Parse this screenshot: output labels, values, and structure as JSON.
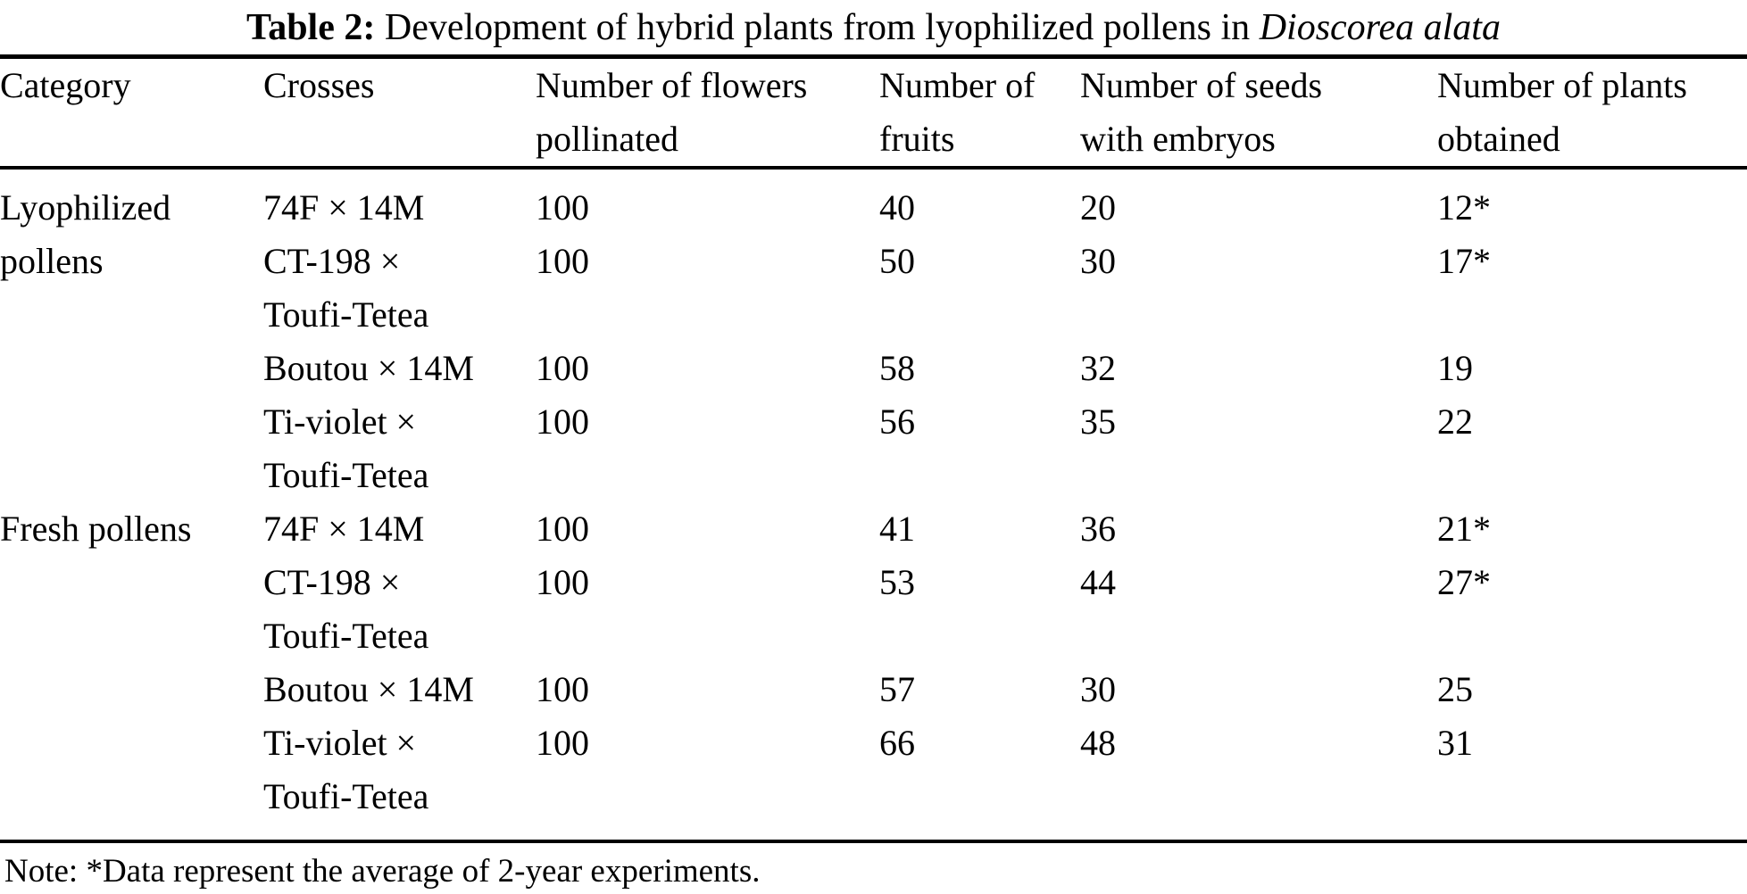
{
  "caption": {
    "prefix": "Table 2:",
    "text": "Development of hybrid plants from lyophilized pollens in",
    "species": "Dioscorea alata"
  },
  "table": {
    "columns": [
      "Category",
      "Crosses",
      "Number of flowers\npollinated",
      "Number of\nfruits",
      "Number of seeds\nwith embryos",
      "Number of plants\nobtained"
    ],
    "groups": [
      {
        "category": "Lyophilized pollens",
        "rows": [
          {
            "cross": "74F × 14M",
            "flowers": "100",
            "fruits": "40",
            "seeds": "20",
            "plants": "12*"
          },
          {
            "cross": "CT-198 ×\nToufi-Tetea",
            "flowers": "100",
            "fruits": "50",
            "seeds": "30",
            "plants": "17*"
          },
          {
            "cross": "Boutou × 14M",
            "flowers": "100",
            "fruits": "58",
            "seeds": "32",
            "plants": "19"
          },
          {
            "cross": "Ti-violet ×\nToufi-Tetea",
            "flowers": "100",
            "fruits": "56",
            "seeds": "35",
            "plants": "22"
          }
        ]
      },
      {
        "category": "Fresh pollens",
        "rows": [
          {
            "cross": "74F × 14M",
            "flowers": "100",
            "fruits": "41",
            "seeds": "36",
            "plants": "21*"
          },
          {
            "cross": "CT-198 ×\nToufi-Tetea",
            "flowers": "100",
            "fruits": "53",
            "seeds": "44",
            "plants": "27*"
          },
          {
            "cross": "Boutou × 14M",
            "flowers": "100",
            "fruits": "57",
            "seeds": "30",
            "plants": "25"
          },
          {
            "cross": "Ti-violet ×\nToufi-Tetea",
            "flowers": "100",
            "fruits": "66",
            "seeds": "48",
            "plants": "31"
          }
        ]
      }
    ],
    "category_display": {
      "lyophilized": "Lyophilized pollens",
      "fresh": "Fresh pollens"
    },
    "note": "Note: *Data represent the average of 2-year experiments."
  }
}
